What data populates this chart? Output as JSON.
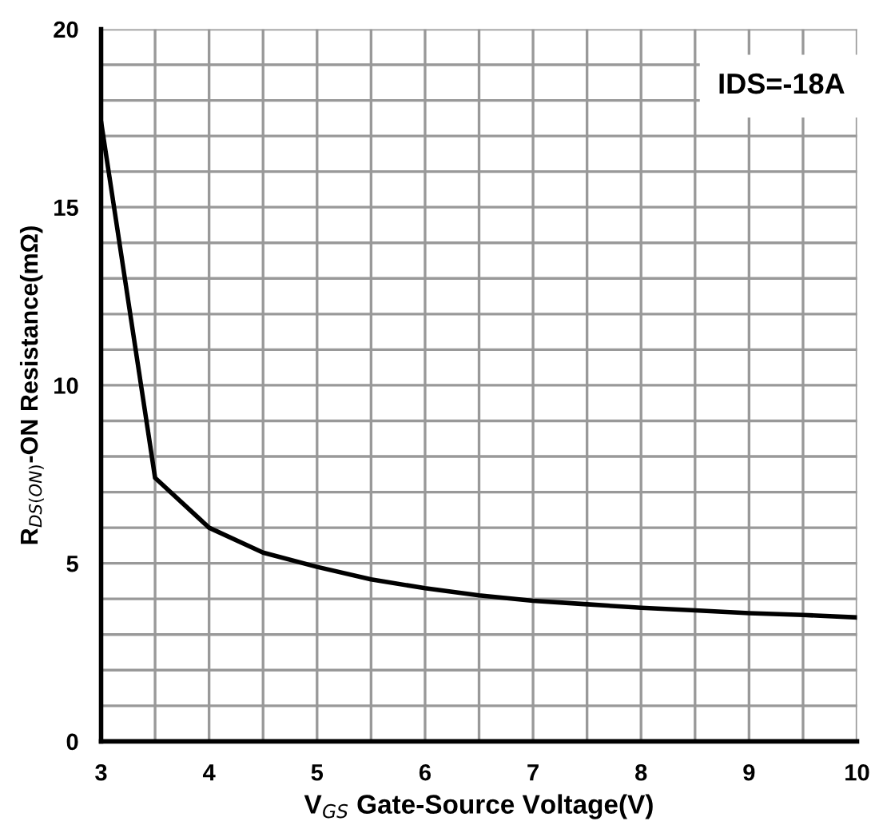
{
  "chart_data": {
    "type": "line",
    "xlabel": "V$_{GS}$ Gate-Source Voltage(V)",
    "ylabel": "R$_{DS(ON)}$-ON Resistance(mΩ)",
    "annotations": [
      "IDS=-18A"
    ],
    "x": [
      3,
      3.5,
      4,
      4.5,
      5,
      5.5,
      6,
      6.5,
      7,
      7.5,
      8,
      8.5,
      9,
      9.5,
      10
    ],
    "series": [
      {
        "color": "#000000",
        "values": [
          17.4,
          7.4,
          6.0,
          5.3,
          4.9,
          4.55,
          4.3,
          4.1,
          3.95,
          3.85,
          3.75,
          3.68,
          3.6,
          3.55,
          3.48
        ]
      }
    ],
    "xlim": [
      3,
      10
    ],
    "ylim": [
      0,
      20
    ],
    "xticks": [
      3,
      {
        "value": 3.5,
        "label": null
      },
      4,
      {
        "value": 4.5,
        "label": null
      },
      5,
      {
        "value": 5.5,
        "label": null
      },
      6,
      {
        "value": 6.5,
        "label": null
      },
      7,
      {
        "value": 7.5,
        "label": null
      },
      8,
      {
        "value": 8.5,
        "label": null
      },
      9,
      {
        "value": 9.5,
        "label": null
      },
      10
    ],
    "yticks": [
      0,
      {
        "value": 1,
        "label": null
      },
      {
        "value": 2,
        "label": null
      },
      {
        "value": 3,
        "label": null
      },
      {
        "value": 4,
        "label": null
      },
      5,
      {
        "value": 6,
        "label": null
      },
      {
        "value": 7,
        "label": null
      },
      {
        "value": 8,
        "label": null
      },
      {
        "value": 9,
        "label": null
      },
      10,
      {
        "value": 11,
        "label": null
      },
      {
        "value": 12,
        "label": null
      },
      {
        "value": 13,
        "label": null
      },
      {
        "value": 14,
        "label": null
      },
      15,
      {
        "value": 16,
        "label": null
      },
      {
        "value": 17,
        "label": null
      },
      {
        "value": 18,
        "label": null
      },
      {
        "value": 19,
        "label": null
      },
      20
    ],
    "grid": true,
    "marker": "none",
    "line_style": "solid"
  }
}
